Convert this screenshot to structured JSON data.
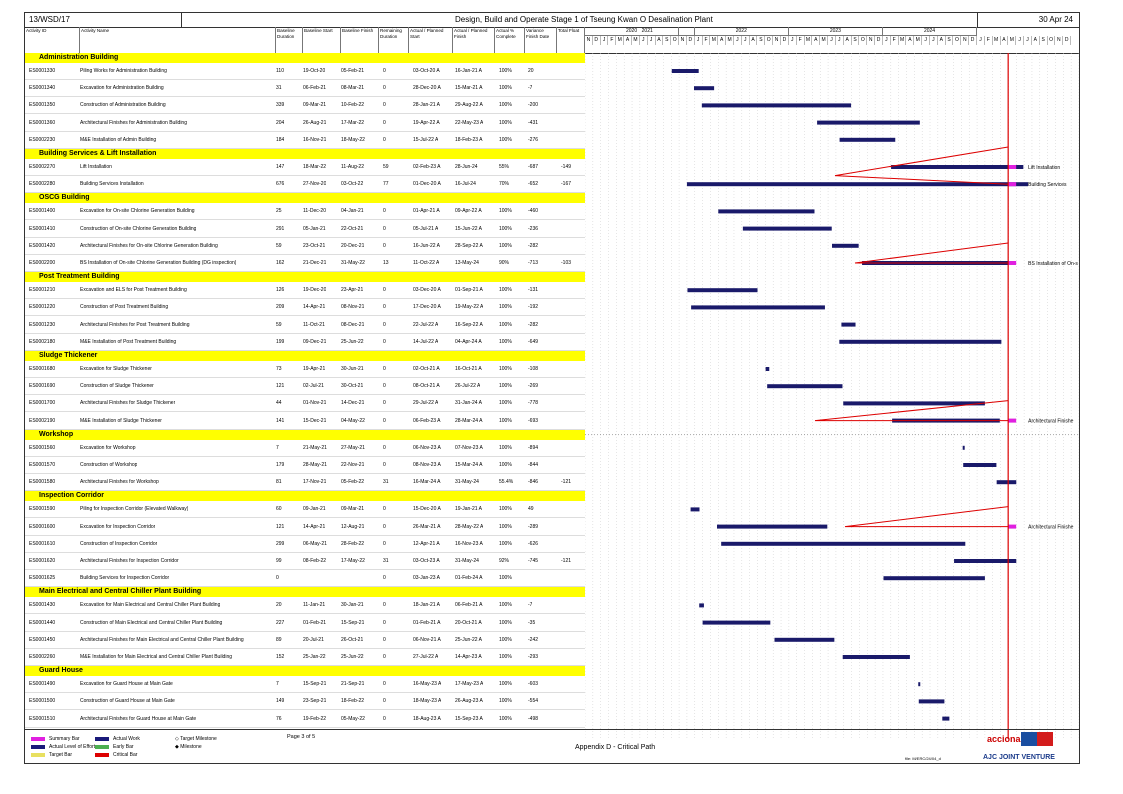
{
  "header": {
    "ref": "13/WSD/17",
    "title": "Design, Build and Operate Stage 1 of Tseung Kwan O Desalination Plant",
    "date": "30 Apr 24"
  },
  "columns": [
    "Activity ID",
    "Activity Name",
    "Baseline Duration",
    "Baseline Start",
    "Baseline Finish",
    "Remaining Duration",
    "Actual / Planned Start",
    "Actual / Planned Finish",
    "Actual % Complete",
    "Variance Finish Date",
    "Total Float"
  ],
  "years": [
    "2020",
    "2021",
    "2022",
    "2023",
    "2024"
  ],
  "months_row": "N D J F M A M J J A S O N D J F M A M J J A S O N D J F M A M J J A S O N D J F M A M J J A S O N D J F M A M J J A S O N D",
  "groups": [
    {
      "name": "Administration Building",
      "rows": [
        [
          "ES0001330",
          "Piling Works for Administration Building",
          "110",
          "19-Oct-20",
          "05-Feb-21",
          "0",
          "03-Oct-20 A",
          "16-Jan-21 A",
          "100%",
          "20",
          ""
        ],
        [
          "ES0001340",
          "Excavation for Administration Building",
          "31",
          "06-Feb-21",
          "08-Mar-21",
          "0",
          "28-Dec-20 A",
          "15-Mar-21 A",
          "100%",
          "-7",
          ""
        ],
        [
          "ES0001350",
          "Construction of Administration Building",
          "339",
          "09-Mar-21",
          "10-Feb-22",
          "0",
          "28-Jan-21 A",
          "29-Aug-22 A",
          "100%",
          "-200",
          ""
        ],
        [
          "ES0001360",
          "Architectural Finishes for Administration Building",
          "204",
          "26-Aug-21",
          "17-Mar-22",
          "0",
          "19-Apr-22 A",
          "22-May-23 A",
          "100%",
          "-431",
          ""
        ],
        [
          "ES0002230",
          "M&E Installation of Admin Building",
          "184",
          "16-Nov-21",
          "18-May-22",
          "0",
          "15-Jul-22 A",
          "18-Feb-23 A",
          "100%",
          "-276",
          ""
        ]
      ]
    },
    {
      "name": "Building Services & Lift Installation",
      "rows": [
        [
          "ES0002270",
          "Lift Installation",
          "147",
          "18-Mar-22",
          "11-Aug-22",
          "59",
          "02-Feb-23 A",
          "28-Jun-24",
          "55%",
          "-687",
          "-149"
        ],
        [
          "ES0002280",
          "Building Services Installation",
          "676",
          "27-Nov-20",
          "03-Oct-22",
          "77",
          "01-Dec-20 A",
          "16-Jul-24",
          "70%",
          "-652",
          "-167"
        ]
      ]
    },
    {
      "name": "OSCG Building",
      "rows": [
        [
          "ES0001400",
          "Excavation for On-site Chlorine Generation Building",
          "25",
          "11-Dec-20",
          "04-Jan-21",
          "0",
          "01-Apr-21 A",
          "09-Apr-22 A",
          "100%",
          "-460",
          ""
        ],
        [
          "ES0001410",
          "Construction of On-site Chlorine Generation Building",
          "291",
          "05-Jan-21",
          "22-Oct-21",
          "0",
          "05-Jul-21 A",
          "15-Jun-22 A",
          "100%",
          "-236",
          ""
        ],
        [
          "ES0001420",
          "Architectural Finishes for On-site Chlorine Generation Building",
          "59",
          "23-Oct-21",
          "20-Dec-21",
          "0",
          "16-Jun-22 A",
          "28-Sep-22 A",
          "100%",
          "-282",
          ""
        ],
        [
          "ES0002200",
          "BS Installation of On-site Chlorine Generation Building (DG inspection)",
          "162",
          "21-Dec-21",
          "31-May-22",
          "13",
          "11-Oct-22 A",
          "13-May-24",
          "90%",
          "-713",
          "-103"
        ]
      ]
    },
    {
      "name": "Post Treatment Building",
      "rows": [
        [
          "ES0001210",
          "Excavation and ELS for Post Treatment Building",
          "126",
          "19-Dec-20",
          "23-Apr-21",
          "0",
          "03-Dec-20 A",
          "01-Sep-21 A",
          "100%",
          "-131",
          ""
        ],
        [
          "ES0001220",
          "Construction of Post Treatment Building",
          "209",
          "14-Apr-21",
          "08-Nov-21",
          "0",
          "17-Dec-20 A",
          "19-May-22 A",
          "100%",
          "-192",
          ""
        ],
        [
          "ES0001230",
          "Architectural Finishes for Post Treatment Building",
          "59",
          "11-Oct-21",
          "08-Dec-21",
          "0",
          "22-Jul-22 A",
          "16-Sep-22 A",
          "100%",
          "-282",
          ""
        ],
        [
          "ES0002180",
          "M&E Installation of Post Treatment Building",
          "199",
          "09-Dec-21",
          "25-Jun-22",
          "0",
          "14-Jul-22 A",
          "04-Apr-24 A",
          "100%",
          "-649",
          ""
        ]
      ]
    },
    {
      "name": "Sludge Thickener",
      "rows": [
        [
          "ES0001680",
          "Excavation for Sludge Thickener",
          "73",
          "19-Apr-21",
          "30-Jun-21",
          "0",
          "02-Oct-21 A",
          "16-Oct-21 A",
          "100%",
          "-108",
          ""
        ],
        [
          "ES0001690",
          "Construction of Sludge Thickener",
          "121",
          "02-Jul-21",
          "30-Oct-21",
          "0",
          "08-Oct-21 A",
          "26-Jul-22 A",
          "100%",
          "-269",
          ""
        ],
        [
          "ES0001700",
          "Architectural Finishes for Sludge Thickener",
          "44",
          "01-Nov-21",
          "14-Dec-21",
          "0",
          "29-Jul-22 A",
          "31-Jan-24 A",
          "100%",
          "-778",
          ""
        ],
        [
          "ES0002190",
          "M&E Installation of Sludge Thickener",
          "141",
          "15-Dec-21",
          "04-May-22",
          "0",
          "06-Feb-23 A",
          "28-Mar-24 A",
          "100%",
          "-693",
          ""
        ]
      ]
    },
    {
      "name": "Workshop",
      "rows": [
        [
          "ES0001560",
          "Excavation for Workshop",
          "7",
          "21-May-21",
          "27-May-21",
          "0",
          "06-Nov-23 A",
          "07-Nov-23 A",
          "100%",
          "-894",
          ""
        ],
        [
          "ES0001570",
          "Construction of Workshop",
          "179",
          "28-May-21",
          "22-Nov-21",
          "0",
          "08-Nov-23 A",
          "15-Mar-24 A",
          "100%",
          "-844",
          ""
        ],
        [
          "ES0001580",
          "Architectural Finishes for Workshop",
          "81",
          "17-Nov-21",
          "05-Feb-22",
          "31",
          "16-Mar-24 A",
          "31-May-24",
          "55.4%",
          "-846",
          "-121"
        ]
      ]
    },
    {
      "name": "Inspection Corridor",
      "rows": [
        [
          "ES0001590",
          "Piling for Inspection Corridor (Elevated Walkway)",
          "60",
          "09-Jan-21",
          "09-Mar-21",
          "0",
          "15-Dec-20 A",
          "19-Jan-21 A",
          "100%",
          "49",
          ""
        ],
        [
          "ES0001600",
          "Excavation for Inspection Corridor",
          "121",
          "14-Apr-21",
          "12-Aug-21",
          "0",
          "26-Mar-21 A",
          "28-May-22 A",
          "100%",
          "-289",
          ""
        ],
        [
          "ES0001610",
          "Construction of Inspection Corridor",
          "299",
          "06-May-21",
          "28-Feb-22",
          "0",
          "12-Apr-21 A",
          "16-Nov-23 A",
          "100%",
          "-626",
          ""
        ],
        [
          "ES0001620",
          "Architectural Finishes for Inspection Corridor",
          "99",
          "08-Feb-22",
          "17-May-22",
          "31",
          "03-Oct-23 A",
          "31-May-24",
          "92%",
          "-745",
          "-121"
        ],
        [
          "ES0001625",
          "Building Services for Inspection Corridor",
          "0",
          "",
          "",
          "0",
          "03-Jan-23 A",
          "01-Feb-24 A",
          "100%",
          "",
          ""
        ]
      ]
    },
    {
      "name": "Main Electrical and Central Chiller Plant Building",
      "rows": [
        [
          "ES0001430",
          "Excavation for Main Electrical and Central Chiller Plant Building",
          "20",
          "11-Jan-21",
          "30-Jan-21",
          "0",
          "18-Jan-21 A",
          "06-Feb-21 A",
          "100%",
          "-7",
          ""
        ],
        [
          "ES0001440",
          "Construction of Main Electrical and Central Chiller Plant Building",
          "227",
          "01-Feb-21",
          "15-Sep-21",
          "0",
          "01-Feb-21 A",
          "20-Oct-21 A",
          "100%",
          "-35",
          ""
        ],
        [
          "ES0001450",
          "Architectural Finishes for Main Electrical and Central Chiller Plant Building",
          "89",
          "20-Jul-21",
          "26-Oct-21",
          "0",
          "06-Nov-21 A",
          "25-Jun-22 A",
          "100%",
          "-242",
          ""
        ],
        [
          "ES0002260",
          "M&E Installation for Main Electrical and Central Chiller Plant Building",
          "152",
          "25-Jan-22",
          "25-Jun-22",
          "0",
          "27-Jul-22 A",
          "14-Apr-23 A",
          "100%",
          "-293",
          ""
        ]
      ]
    },
    {
      "name": "Guard House",
      "rows": [
        [
          "ES0001490",
          "Excavation for Guard House at Main Gate",
          "7",
          "15-Sep-21",
          "21-Sep-21",
          "0",
          "16-May-23 A",
          "17-May-23 A",
          "100%",
          "-603",
          ""
        ],
        [
          "ES0001500",
          "Construction of Guard House at Main Gate",
          "149",
          "23-Sep-21",
          "18-Feb-22",
          "0",
          "18-May-23 A",
          "26-Aug-23 A",
          "100%",
          "-554",
          ""
        ],
        [
          "ES0001510",
          "Architectural Finishes for Guard House at Main Gate",
          "76",
          "19-Feb-22",
          "05-May-22",
          "0",
          "18-Aug-23 A",
          "15-Sep-23 A",
          "100%",
          "-498",
          ""
        ]
      ]
    }
  ],
  "bar_labels": [
    "Lift Installation",
    "Building Services",
    "BS Installation of On-s",
    "Architectural Finishe",
    "Architectural Finishe"
  ],
  "legend": [
    "Summary Bar",
    "Actual Work",
    "Target Milestone",
    "Actual Level of Effort",
    "Early Bar",
    "Milestone",
    "Target Bar",
    "Critical Bar"
  ],
  "footer": {
    "page": "Page 3 of 5",
    "appendix": "Appendix D - Critical Path",
    "file": "file: M/ERC/24/04_d",
    "brand1": "acciona",
    "brand2": "AJC JOINT VENTURE"
  }
}
